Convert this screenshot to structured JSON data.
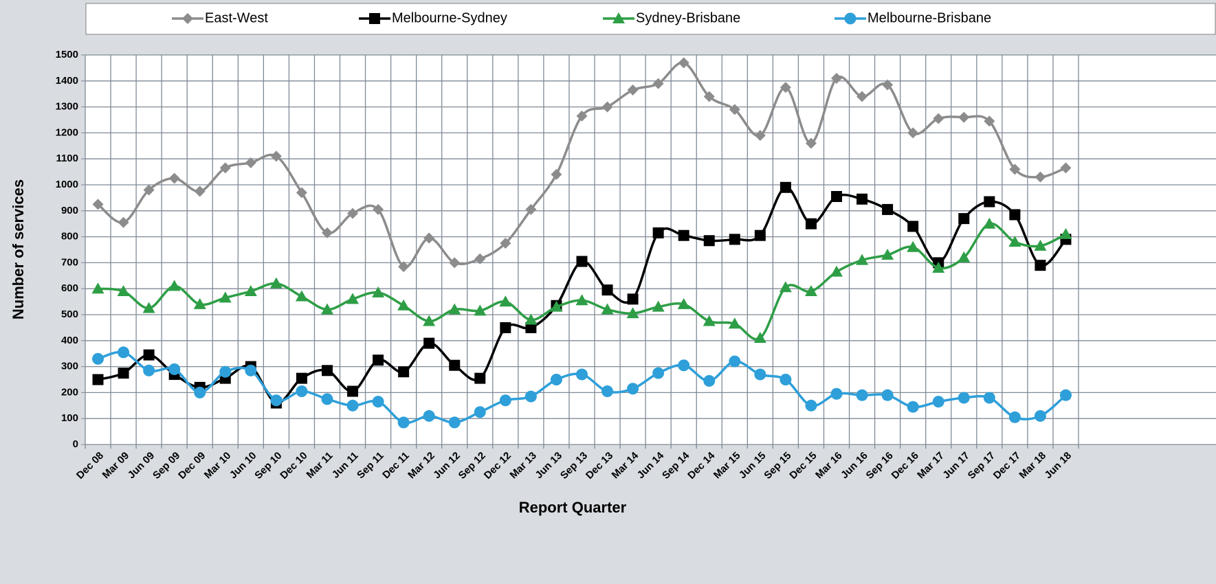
{
  "chart_data": {
    "type": "line",
    "categories": [
      "Dec 08",
      "Mar 09",
      "Jun 09",
      "Sep 09",
      "Dec 09",
      "Mar 10",
      "Jun 10",
      "Sep 10",
      "Dec 10",
      "Mar 11",
      "Jun 11",
      "Sep 11",
      "Dec 11",
      "Mar 12",
      "Jun 12",
      "Sep 12",
      "Dec 12",
      "Mar 13",
      "Jun 13",
      "Sep 13",
      "Dec 13",
      "Mar 14",
      "Jun 14",
      "Sep 14",
      "Dec 14",
      "Mar 15",
      "Jun 15",
      "Sep 15",
      "Dec 15",
      "Mar 16",
      "Jun 16",
      "Sep 16",
      "Dec 16",
      "Mar 17",
      "Jun 17",
      "Sep 17",
      "Dec 17",
      "Mar 18",
      "Jun 18"
    ],
    "series": [
      {
        "name": "East-West",
        "color": "#8c8c8c",
        "marker": "diamond",
        "values": [
          925,
          855,
          980,
          1025,
          975,
          1065,
          1085,
          1110,
          970,
          815,
          890,
          905,
          685,
          795,
          700,
          715,
          775,
          905,
          1040,
          1265,
          1300,
          1365,
          1390,
          1470,
          1340,
          1290,
          1190,
          1375,
          1160,
          1410,
          1340,
          1385,
          1200,
          1255,
          1260,
          1245,
          1060,
          1030,
          1065
        ]
      },
      {
        "name": "Melbourne-Sydney",
        "color": "#000000",
        "marker": "square",
        "values": [
          250,
          275,
          345,
          270,
          220,
          255,
          300,
          160,
          255,
          285,
          205,
          325,
          280,
          390,
          305,
          255,
          450,
          450,
          535,
          705,
          595,
          560,
          815,
          805,
          785,
          790,
          805,
          990,
          850,
          955,
          945,
          905,
          840,
          700,
          870,
          935,
          885,
          690,
          790
        ]
      },
      {
        "name": "Sydney-Brisbane",
        "color": "#2e9e46",
        "marker": "triangle",
        "values": [
          600,
          590,
          525,
          610,
          540,
          565,
          590,
          620,
          570,
          520,
          560,
          585,
          535,
          475,
          520,
          515,
          550,
          480,
          530,
          555,
          520,
          505,
          530,
          540,
          475,
          465,
          410,
          605,
          590,
          665,
          710,
          730,
          760,
          680,
          720,
          850,
          780,
          765,
          810
        ]
      },
      {
        "name": "Melbourne-Brisbane",
        "color": "#2e9fd9",
        "marker": "circle",
        "values": [
          330,
          355,
          285,
          290,
          200,
          280,
          285,
          170,
          205,
          175,
          150,
          165,
          85,
          110,
          85,
          125,
          170,
          185,
          250,
          270,
          205,
          215,
          275,
          305,
          245,
          320,
          270,
          250,
          150,
          195,
          190,
          190,
          145,
          165,
          180,
          180,
          105,
          110,
          190
        ]
      }
    ],
    "x_label": "Report Quarter",
    "y_label": "Number of services",
    "ylim": [
      0,
      1500
    ],
    "yticks": [
      0,
      100,
      200,
      300,
      400,
      500,
      600,
      700,
      800,
      900,
      1000,
      1100,
      1200,
      1300,
      1400,
      1500
    ],
    "grid": true,
    "legend": "top"
  }
}
